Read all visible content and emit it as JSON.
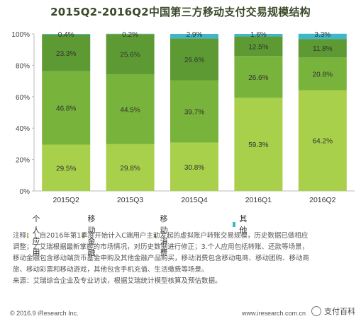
{
  "title": "2015Q2-2016Q2中国第三方移动支付交易规模结构",
  "colors": {
    "个人应用": "#a8d04a",
    "移动金融": "#78b33b",
    "移动消费": "#5d9a34",
    "其他": "#3fb7c9"
  },
  "chart_data": {
    "type": "bar",
    "stacked": true,
    "categories": [
      "2015Q2",
      "2015Q3",
      "2015Q4",
      "2016Q1",
      "2016Q2"
    ],
    "series": [
      {
        "name": "个人应用",
        "values": [
          29.5,
          29.8,
          30.8,
          59.3,
          64.2
        ],
        "labels": [
          "29.5%",
          "29.8%",
          "30.8%",
          "59.3%",
          "64.2%"
        ]
      },
      {
        "name": "移动金融",
        "values": [
          46.8,
          44.5,
          39.7,
          26.6,
          20.8
        ],
        "labels": [
          "46.8%",
          "44.5%",
          "39.7%",
          "26.6%",
          "20.8%"
        ]
      },
      {
        "name": "移动消费",
        "values": [
          23.3,
          25.6,
          26.6,
          12.5,
          11.8
        ],
        "labels": [
          "23.3%",
          "25.6%",
          "26.6%",
          "12.5%",
          "11.8%"
        ]
      },
      {
        "name": "其他",
        "values": [
          0.4,
          0.2,
          2.9,
          1.6,
          3.3
        ],
        "labels": [
          "0.4%",
          "0.2%",
          "2.9%",
          "1.6%",
          "3.3%"
        ]
      }
    ],
    "y_ticks": [
      "0%",
      "20%",
      "40%",
      "60%",
      "80%",
      "100%"
    ],
    "ylim": [
      0,
      100
    ],
    "grid": false,
    "legend_position": "bottom"
  },
  "notes": [
    "注释：1.自2016年第1季度开始计入C端用户主动发起的虚拟账户转账交易规模，历史数据已做相应",
    "调整；2.艾瑞根据最新掌握的市场情况，对历史数据进行修正；3.个人应用包括转账、还款等场景，",
    "移动金融包含移动端货币基金申购及其他金融产品购买，移动消费包含移动电商、移动团购、移动商",
    "旅、移动彩票和移动游戏，其他包含手机充值、生活缴费等场景。",
    "来源：艾瑞综合企业及专业访谈，根据艾瑞统计模型核算及预估数据。"
  ],
  "footer": {
    "copyright": "© 2016.9 iResearch Inc.",
    "website": "www.iresearch.com.cn",
    "watermark": "支付百科"
  }
}
